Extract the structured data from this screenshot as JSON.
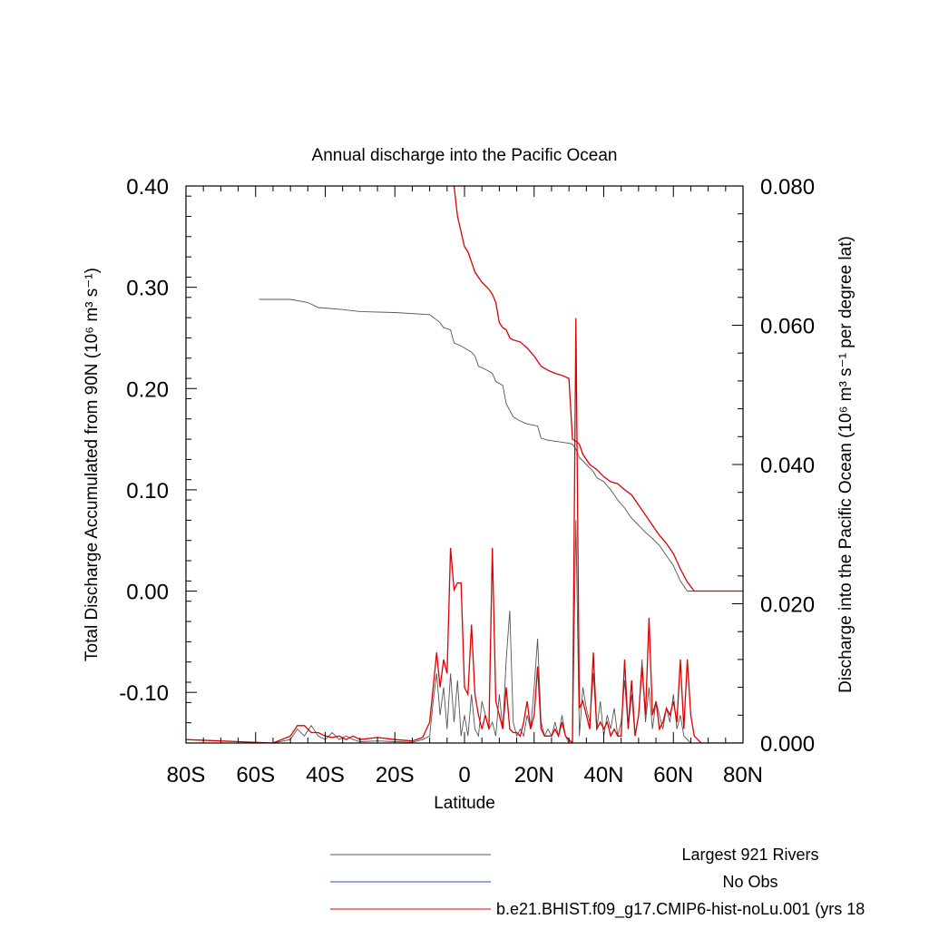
{
  "chart_data": {
    "type": "line",
    "title": "Annual discharge into the Pacific Ocean",
    "xlabel": "Latitude",
    "ylabel_left": "Total Discharge Accumulated from 90N (10⁶ m³ s⁻¹)",
    "ylabel_right": "Discharge into the Pacific Ocean (10⁶ m³ s⁻¹ per degree lat)",
    "xlim": [
      -80,
      80
    ],
    "ylim_left": [
      -0.15,
      0.4
    ],
    "ylim_right": [
      0,
      0.08
    ],
    "x_ticks": [
      {
        "value": -80,
        "label": "80S"
      },
      {
        "value": -60,
        "label": "60S"
      },
      {
        "value": -40,
        "label": "40S"
      },
      {
        "value": -20,
        "label": "20S"
      },
      {
        "value": 0,
        "label": "0"
      },
      {
        "value": 20,
        "label": "20N"
      },
      {
        "value": 40,
        "label": "40N"
      },
      {
        "value": 60,
        "label": "60N"
      },
      {
        "value": 80,
        "label": "80N"
      }
    ],
    "y_left_ticks": [
      {
        "value": 0.4,
        "label": "0.40"
      },
      {
        "value": 0.3,
        "label": "0.30"
      },
      {
        "value": 0.2,
        "label": "0.20"
      },
      {
        "value": 0.1,
        "label": "0.10"
      },
      {
        "value": 0.0,
        "label": "0.00"
      },
      {
        "value": -0.1,
        "label": "-0.10"
      }
    ],
    "y_right_ticks": [
      {
        "value": 0.08,
        "label": "0.080"
      },
      {
        "value": 0.06,
        "label": "0.060"
      },
      {
        "value": 0.04,
        "label": "0.040"
      },
      {
        "value": 0.02,
        "label": "0.020"
      },
      {
        "value": 0.0,
        "label": "0.000"
      }
    ],
    "series": [
      {
        "name": "Largest 921 Rivers",
        "color": "#555555",
        "axis": "left",
        "kind": "accumulated",
        "x": [
          -59,
          -50,
          -45,
          -42,
          -35,
          -30,
          -20,
          -10,
          -7,
          -6,
          -4,
          -3,
          -1,
          0,
          2,
          3,
          4,
          6,
          8,
          9,
          10,
          11,
          12,
          14,
          16,
          18,
          21,
          22,
          24,
          28,
          30,
          31,
          32,
          33,
          35,
          37,
          38,
          40,
          42,
          44,
          46,
          48,
          50,
          52,
          54,
          56,
          58,
          60,
          62,
          64,
          80
        ],
        "y": [
          0.288,
          0.288,
          0.285,
          0.28,
          0.278,
          0.276,
          0.275,
          0.273,
          0.265,
          0.26,
          0.258,
          0.245,
          0.242,
          0.24,
          0.236,
          0.232,
          0.222,
          0.219,
          0.215,
          0.207,
          0.205,
          0.203,
          0.185,
          0.172,
          0.168,
          0.165,
          0.163,
          0.151,
          0.149,
          0.147,
          0.146,
          0.145,
          0.14,
          0.132,
          0.125,
          0.118,
          0.112,
          0.108,
          0.1,
          0.09,
          0.082,
          0.072,
          0.065,
          0.058,
          0.052,
          0.045,
          0.035,
          0.025,
          0.01,
          0.0,
          0.0
        ]
      },
      {
        "name": "No Obs",
        "color": "#3344dd",
        "axis": "left",
        "kind": "legend-only",
        "x": [],
        "y": []
      },
      {
        "name": "b.e21.BHIST.f09_g17.CMIP6-hist-noLu.001 (yrs 18",
        "color": "#dd0000",
        "axis": "left",
        "kind": "accumulated",
        "x": [
          -3,
          -2,
          0,
          1,
          2,
          3,
          5,
          7,
          8,
          9,
          10,
          11,
          12,
          13,
          14,
          16,
          18,
          20,
          22,
          24,
          26,
          28,
          30,
          31,
          32,
          33,
          34,
          36,
          38,
          40,
          42,
          44,
          46,
          48,
          50,
          52,
          54,
          56,
          58,
          60,
          62,
          64,
          66,
          80
        ],
        "y": [
          0.4,
          0.37,
          0.34,
          0.335,
          0.325,
          0.315,
          0.305,
          0.298,
          0.293,
          0.285,
          0.265,
          0.26,
          0.258,
          0.25,
          0.248,
          0.246,
          0.24,
          0.232,
          0.222,
          0.218,
          0.215,
          0.213,
          0.21,
          0.15,
          0.148,
          0.145,
          0.135,
          0.125,
          0.12,
          0.113,
          0.108,
          0.106,
          0.1,
          0.095,
          0.085,
          0.075,
          0.065,
          0.055,
          0.047,
          0.037,
          0.022,
          0.009,
          0.0,
          0.0
        ]
      },
      {
        "name": "Largest 921 Rivers",
        "color": "#555555",
        "axis": "right",
        "kind": "per-degree",
        "x": [
          -80,
          -55,
          -50,
          -48,
          -46,
          -44,
          -42,
          -40,
          -38,
          -36,
          -34,
          -32,
          -30,
          -25,
          -20,
          -15,
          -12,
          -10,
          -9,
          -8,
          -7,
          -6,
          -5,
          -4,
          -3,
          -2,
          -1,
          0,
          1,
          2,
          3,
          4,
          5,
          6,
          7,
          8,
          9,
          10,
          11,
          12,
          13,
          14,
          15,
          16,
          17,
          18,
          19,
          20,
          21,
          22,
          23,
          24,
          25,
          26,
          27,
          28,
          29,
          30,
          31,
          32,
          33,
          34,
          35,
          36,
          37,
          38,
          39,
          40,
          41,
          42,
          43,
          44,
          45,
          46,
          47,
          48,
          49,
          50,
          51,
          52,
          53,
          54,
          55,
          56,
          57,
          58,
          59,
          60,
          61,
          62,
          63,
          64,
          65,
          66,
          68,
          80
        ],
        "y": [
          0.0,
          0.0,
          0.0005,
          0.002,
          0.001,
          0.0025,
          0.001,
          0.0005,
          0.0015,
          0.0005,
          0.001,
          0.0005,
          0.0002,
          0.0003,
          0.0002,
          0.0001,
          0.0005,
          0.001,
          0.006,
          0.01,
          0.004,
          0.008,
          0.002,
          0.01,
          0.003,
          0.009,
          0.001,
          0.004,
          0.001,
          0.007,
          0.002,
          0.001,
          0.006,
          0.004,
          0.002,
          0.003,
          0.001,
          0.007,
          0.002,
          0.012,
          0.019,
          0.003,
          0.001,
          0.002,
          0.001,
          0.004,
          0.002,
          0.008,
          0.015,
          0.003,
          0.001,
          0.002,
          0.001,
          0.003,
          0.001,
          0.004,
          0.001,
          0.0,
          0.0,
          0.032,
          0.001,
          0.008,
          0.005,
          0.003,
          0.01,
          0.002,
          0.006,
          0.001,
          0.004,
          0.002,
          0.005,
          0.001,
          0.003,
          0.009,
          0.002,
          0.007,
          0.001,
          0.004,
          0.012,
          0.003,
          0.008,
          0.002,
          0.006,
          0.004,
          0.002,
          0.005,
          0.003,
          0.007,
          0.002,
          0.004,
          0.001,
          0.0005,
          0.0,
          0.0,
          0.0,
          0.0
        ]
      },
      {
        "name": "b.e21.BHIST.f09_g17.CMIP6-hist-noLu.001 (yrs 18",
        "color": "#dd0000",
        "axis": "right",
        "kind": "per-degree",
        "x": [
          -80,
          -55,
          -50,
          -48,
          -46,
          -44,
          -42,
          -40,
          -38,
          -36,
          -34,
          -32,
          -30,
          -25,
          -20,
          -15,
          -12,
          -10,
          -9,
          -8,
          -7,
          -6,
          -5,
          -4,
          -3,
          -2,
          -1,
          0,
          1,
          2,
          3,
          4,
          5,
          6,
          7,
          8,
          9,
          10,
          11,
          12,
          13,
          14,
          15,
          16,
          17,
          18,
          19,
          20,
          21,
          22,
          23,
          24,
          25,
          26,
          27,
          28,
          29,
          30,
          31,
          32,
          33,
          34,
          35,
          36,
          37,
          38,
          39,
          40,
          41,
          42,
          43,
          44,
          45,
          46,
          47,
          48,
          49,
          50,
          51,
          52,
          53,
          54,
          55,
          56,
          57,
          58,
          59,
          60,
          61,
          62,
          63,
          64,
          65,
          66,
          68,
          80
        ],
        "y": [
          0.0005,
          0.0,
          0.001,
          0.0025,
          0.0025,
          0.0015,
          0.0015,
          0.001,
          0.0008,
          0.001,
          0.0005,
          0.001,
          0.0005,
          0.0008,
          0.0005,
          0.0003,
          0.0008,
          0.003,
          0.008,
          0.013,
          0.008,
          0.012,
          0.01,
          0.028,
          0.022,
          0.023,
          0.023,
          0.008,
          0.007,
          0.017,
          0.007,
          0.004,
          0.002,
          0.004,
          0.002,
          0.028,
          0.006,
          0.004,
          0.002,
          0.008,
          0.002,
          0.0015,
          0.0015,
          0.001,
          0.003,
          0.006,
          0.002,
          0.004,
          0.011,
          0.002,
          0.001,
          0.001,
          0.001,
          0.002,
          0.001,
          0.003,
          0.001,
          0.0005,
          0.0,
          0.061,
          0.005,
          0.006,
          0.004,
          0.002,
          0.013,
          0.002,
          0.003,
          0.002,
          0.003,
          0.001,
          0.002,
          0.001,
          0.001,
          0.012,
          0.002,
          0.009,
          0.001,
          0.004,
          0.011,
          0.004,
          0.018,
          0.004,
          0.006,
          0.002,
          0.003,
          0.005,
          0.004,
          0.006,
          0.003,
          0.012,
          0.002,
          0.012,
          0.004,
          0.001,
          0.0,
          0.0
        ]
      }
    ],
    "legend": {
      "placement": "bottom",
      "entries": [
        {
          "label": "Largest 921 Rivers",
          "color": "#555555"
        },
        {
          "label": "No Obs",
          "color": "#3344dd"
        },
        {
          "label": "b.e21.BHIST.f09_g17.CMIP6-hist-noLu.001 (yrs 18",
          "color": "#dd0000"
        }
      ]
    },
    "grid": false
  }
}
